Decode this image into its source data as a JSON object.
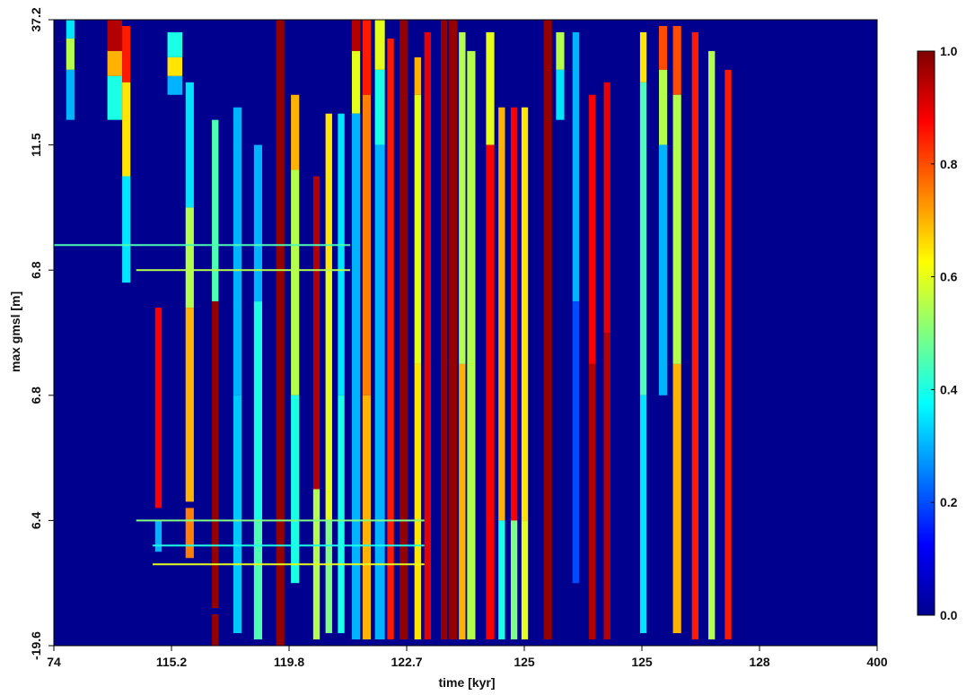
{
  "chart_data": {
    "type": "heatmap",
    "title": "",
    "xlabel": "time [kyr]",
    "ylabel": "max  gmsl [m]",
    "x_tick_labels": [
      "74",
      "115.2",
      "119.8",
      "122.7",
      "125",
      "125",
      "128",
      "400"
    ],
    "y_tick_labels": [
      "37.2",
      "11.5",
      "6.8",
      "6.8",
      "6.4",
      "-19.6"
    ],
    "colorbar": {
      "range": [
        0.0,
        1.0
      ],
      "tick_labels": [
        "1.0",
        "0.8",
        "0.6",
        "0.4",
        "0.2",
        "0.0"
      ],
      "colormap": "jet"
    },
    "background_value": 0.0,
    "columns": [
      {
        "x": 0.015,
        "w": 0.01,
        "segments": [
          [
            0.0,
            0.03,
            0.35
          ],
          [
            0.03,
            0.08,
            0.55
          ],
          [
            0.08,
            0.16,
            0.3
          ]
        ]
      },
      {
        "x": 0.065,
        "w": 0.018,
        "segments": [
          [
            0.0,
            0.05,
            0.95
          ],
          [
            0.05,
            0.09,
            0.7
          ],
          [
            0.09,
            0.16,
            0.4
          ]
        ]
      },
      {
        "x": 0.083,
        "w": 0.01,
        "segments": [
          [
            0.01,
            0.1,
            0.85
          ],
          [
            0.1,
            0.25,
            0.65
          ],
          [
            0.25,
            0.42,
            0.35
          ]
        ]
      },
      {
        "x": 0.123,
        "w": 0.008,
        "segments": [
          [
            0.46,
            0.78,
            0.88
          ],
          [
            0.8,
            0.85,
            0.3
          ]
        ]
      },
      {
        "x": 0.138,
        "w": 0.018,
        "segments": [
          [
            0.02,
            0.06,
            0.4
          ],
          [
            0.06,
            0.09,
            0.65
          ],
          [
            0.09,
            0.12,
            0.3
          ]
        ]
      },
      {
        "x": 0.16,
        "w": 0.01,
        "segments": [
          [
            0.1,
            0.3,
            0.35
          ],
          [
            0.3,
            0.46,
            0.55
          ],
          [
            0.46,
            0.77,
            0.7
          ],
          [
            0.78,
            0.86,
            0.75
          ]
        ]
      },
      {
        "x": 0.192,
        "w": 0.008,
        "segments": [
          [
            0.16,
            0.45,
            0.45
          ],
          [
            0.45,
            0.94,
            0.98
          ],
          [
            0.95,
            1.0,
            0.98
          ]
        ]
      },
      {
        "x": 0.218,
        "w": 0.01,
        "segments": [
          [
            0.14,
            0.6,
            0.3
          ],
          [
            0.6,
            0.98,
            0.32
          ]
        ]
      },
      {
        "x": 0.243,
        "w": 0.01,
        "segments": [
          [
            0.2,
            0.45,
            0.3
          ],
          [
            0.45,
            0.8,
            0.4
          ],
          [
            0.8,
            0.99,
            0.45
          ]
        ]
      },
      {
        "x": 0.27,
        "w": 0.01,
        "segments": [
          [
            0.0,
            1.0,
            0.98
          ]
        ]
      },
      {
        "x": 0.288,
        "w": 0.01,
        "segments": [
          [
            0.12,
            0.24,
            0.7
          ],
          [
            0.24,
            0.6,
            0.55
          ],
          [
            0.6,
            0.9,
            0.4
          ]
        ]
      },
      {
        "x": 0.315,
        "w": 0.008,
        "segments": [
          [
            0.25,
            0.75,
            0.95
          ],
          [
            0.75,
            0.99,
            0.55
          ]
        ]
      },
      {
        "x": 0.33,
        "w": 0.008,
        "segments": [
          [
            0.15,
            0.4,
            0.65
          ],
          [
            0.4,
            0.8,
            0.6
          ],
          [
            0.8,
            0.98,
            0.5
          ]
        ]
      },
      {
        "x": 0.345,
        "w": 0.008,
        "segments": [
          [
            0.15,
            0.6,
            0.35
          ],
          [
            0.6,
            0.98,
            0.4
          ]
        ]
      },
      {
        "x": 0.362,
        "w": 0.01,
        "segments": [
          [
            0.0,
            0.05,
            0.95
          ],
          [
            0.05,
            0.15,
            0.6
          ],
          [
            0.15,
            0.99,
            0.3
          ]
        ]
      },
      {
        "x": 0.375,
        "w": 0.01,
        "segments": [
          [
            0.0,
            0.12,
            0.85
          ],
          [
            0.12,
            0.6,
            0.75
          ],
          [
            0.6,
            0.99,
            0.7
          ]
        ]
      },
      {
        "x": 0.39,
        "w": 0.012,
        "segments": [
          [
            0.0,
            0.08,
            0.6
          ],
          [
            0.08,
            0.2,
            0.4
          ],
          [
            0.2,
            0.99,
            0.3
          ]
        ]
      },
      {
        "x": 0.405,
        "w": 0.008,
        "segments": [
          [
            0.03,
            0.99,
            0.85
          ]
        ]
      },
      {
        "x": 0.42,
        "w": 0.01,
        "segments": [
          [
            0.0,
            0.99,
            0.98
          ]
        ]
      },
      {
        "x": 0.438,
        "w": 0.008,
        "segments": [
          [
            0.06,
            0.12,
            0.7
          ],
          [
            0.12,
            0.55,
            0.6
          ],
          [
            0.55,
            0.99,
            0.65
          ]
        ]
      },
      {
        "x": 0.45,
        "w": 0.008,
        "segments": [
          [
            0.02,
            0.99,
            0.9
          ]
        ]
      },
      {
        "x": 0.47,
        "w": 0.008,
        "segments": [
          [
            0.0,
            0.99,
            0.98
          ]
        ]
      },
      {
        "x": 0.48,
        "w": 0.01,
        "segments": [
          [
            0.0,
            0.99,
            0.98
          ]
        ]
      },
      {
        "x": 0.492,
        "w": 0.008,
        "segments": [
          [
            0.02,
            0.55,
            0.55
          ],
          [
            0.55,
            0.99,
            0.7
          ]
        ]
      },
      {
        "x": 0.502,
        "w": 0.01,
        "segments": [
          [
            0.05,
            0.99,
            0.55
          ]
        ]
      },
      {
        "x": 0.525,
        "w": 0.01,
        "segments": [
          [
            0.02,
            0.2,
            0.6
          ],
          [
            0.2,
            0.99,
            0.88
          ]
        ]
      },
      {
        "x": 0.54,
        "w": 0.008,
        "segments": [
          [
            0.14,
            0.8,
            0.7
          ],
          [
            0.8,
            0.99,
            0.4
          ]
        ]
      },
      {
        "x": 0.555,
        "w": 0.008,
        "segments": [
          [
            0.14,
            0.8,
            0.88
          ],
          [
            0.8,
            0.99,
            0.5
          ]
        ]
      },
      {
        "x": 0.568,
        "w": 0.008,
        "segments": [
          [
            0.14,
            0.8,
            0.65
          ],
          [
            0.8,
            0.99,
            0.6
          ]
        ]
      },
      {
        "x": 0.595,
        "w": 0.01,
        "segments": [
          [
            0.0,
            0.99,
            0.98
          ]
        ]
      },
      {
        "x": 0.61,
        "w": 0.01,
        "segments": [
          [
            0.02,
            0.08,
            0.55
          ],
          [
            0.08,
            0.16,
            0.35
          ]
        ]
      },
      {
        "x": 0.63,
        "w": 0.008,
        "segments": [
          [
            0.02,
            0.45,
            0.3
          ],
          [
            0.45,
            0.9,
            0.2
          ]
        ]
      },
      {
        "x": 0.65,
        "w": 0.008,
        "segments": [
          [
            0.12,
            0.55,
            0.88
          ],
          [
            0.55,
            0.99,
            0.95
          ]
        ]
      },
      {
        "x": 0.668,
        "w": 0.008,
        "segments": [
          [
            0.1,
            0.5,
            0.9
          ],
          [
            0.5,
            0.99,
            0.95
          ]
        ]
      },
      {
        "x": 0.712,
        "w": 0.008,
        "segments": [
          [
            0.02,
            0.1,
            0.65
          ],
          [
            0.1,
            0.6,
            0.45
          ],
          [
            0.6,
            0.98,
            0.35
          ]
        ]
      },
      {
        "x": 0.735,
        "w": 0.01,
        "segments": [
          [
            0.01,
            0.08,
            0.8
          ],
          [
            0.08,
            0.2,
            0.55
          ],
          [
            0.2,
            0.6,
            0.3
          ]
        ]
      },
      {
        "x": 0.752,
        "w": 0.01,
        "segments": [
          [
            0.01,
            0.12,
            0.8
          ],
          [
            0.12,
            0.55,
            0.55
          ],
          [
            0.55,
            0.98,
            0.7
          ]
        ]
      },
      {
        "x": 0.775,
        "w": 0.008,
        "segments": [
          [
            0.02,
            0.99,
            0.85
          ]
        ]
      },
      {
        "x": 0.795,
        "w": 0.008,
        "segments": [
          [
            0.05,
            0.99,
            0.55
          ]
        ]
      },
      {
        "x": 0.815,
        "w": 0.008,
        "segments": [
          [
            0.08,
            0.99,
            0.85
          ]
        ]
      }
    ],
    "horizontal_bands": [
      {
        "y": 0.36,
        "x0": 0.0,
        "x1": 0.36,
        "v": 0.45
      },
      {
        "y": 0.4,
        "x0": 0.1,
        "x1": 0.36,
        "v": 0.55
      },
      {
        "y": 0.8,
        "x0": 0.1,
        "x1": 0.45,
        "v": 0.5
      },
      {
        "y": 0.84,
        "x0": 0.12,
        "x1": 0.45,
        "v": 0.4
      },
      {
        "y": 0.87,
        "x0": 0.12,
        "x1": 0.45,
        "v": 0.6
      }
    ]
  }
}
